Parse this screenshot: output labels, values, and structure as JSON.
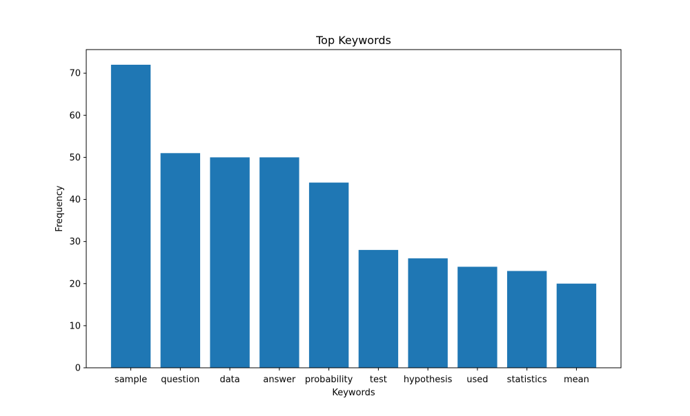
{
  "chart_data": {
    "type": "bar",
    "title": "Top Keywords",
    "xlabel": "Keywords",
    "ylabel": "Frequency",
    "categories": [
      "sample",
      "question",
      "data",
      "answer",
      "probability",
      "test",
      "hypothesis",
      "used",
      "statistics",
      "mean"
    ],
    "values": [
      72,
      51,
      50,
      50,
      44,
      28,
      26,
      24,
      23,
      20
    ],
    "ylim": [
      0,
      75.6
    ],
    "yticks": [
      0,
      10,
      20,
      30,
      40,
      50,
      60,
      70
    ],
    "grid": false,
    "legend": "none",
    "bar_color": "#1f77b4"
  }
}
